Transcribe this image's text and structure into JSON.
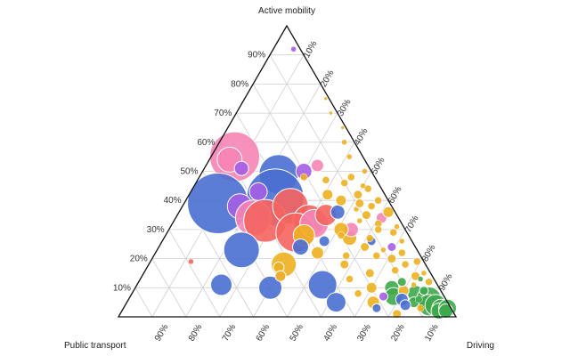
{
  "chart_data": {
    "type": "scatter",
    "subtype": "ternary-bubble",
    "axes": {
      "top": "Active mobility",
      "left": "Public transport",
      "right": "Driving"
    },
    "tick_labels": [
      "10%",
      "20%",
      "30%",
      "40%",
      "50%",
      "60%",
      "70%",
      "80%",
      "90%"
    ],
    "grid": true,
    "colors": {
      "blue": "#4a6fd1",
      "purple": "#a45ee5",
      "pink": "#f585b5",
      "red": "#f5645f",
      "orange": "#eeb021",
      "green": "#3ea84b",
      "grid": "#d0d0d0",
      "frame": "#111111"
    },
    "points": [
      {
        "a": 0.92,
        "p": 0.02,
        "d": 0.06,
        "size": 3,
        "color": "purple"
      },
      {
        "a": 0.55,
        "p": 0.38,
        "d": 0.07,
        "size": 28,
        "color": "pink"
      },
      {
        "a": 0.54,
        "p": 0.4,
        "d": 0.06,
        "size": 14,
        "color": "pink"
      },
      {
        "a": 0.51,
        "p": 0.38,
        "d": 0.11,
        "size": 8,
        "color": "purple"
      },
      {
        "a": 0.49,
        "p": 0.28,
        "d": 0.23,
        "size": 22,
        "color": "blue"
      },
      {
        "a": 0.41,
        "p": 0.33,
        "d": 0.26,
        "size": 32,
        "color": "blue"
      },
      {
        "a": 0.43,
        "p": 0.37,
        "d": 0.2,
        "size": 10,
        "color": "purple"
      },
      {
        "a": 0.5,
        "p": 0.2,
        "d": 0.3,
        "size": 9,
        "color": "purple"
      },
      {
        "a": 0.52,
        "p": 0.15,
        "d": 0.33,
        "size": 7,
        "color": "pink"
      },
      {
        "a": 0.48,
        "p": 0.21,
        "d": 0.31,
        "size": 4,
        "color": "orange"
      },
      {
        "a": 0.39,
        "p": 0.51,
        "d": 0.1,
        "size": 34,
        "color": "blue"
      },
      {
        "a": 0.38,
        "p": 0.45,
        "d": 0.17,
        "size": 14,
        "color": "purple"
      },
      {
        "a": 0.34,
        "p": 0.43,
        "d": 0.23,
        "size": 20,
        "color": "pink"
      },
      {
        "a": 0.33,
        "p": 0.4,
        "d": 0.27,
        "size": 24,
        "color": "red"
      },
      {
        "a": 0.38,
        "p": 0.3,
        "d": 0.32,
        "size": 20,
        "color": "red"
      },
      {
        "a": 0.33,
        "p": 0.27,
        "d": 0.4,
        "size": 18,
        "color": "red"
      },
      {
        "a": 0.29,
        "p": 0.33,
        "d": 0.38,
        "size": 22,
        "color": "red"
      },
      {
        "a": 0.32,
        "p": 0.26,
        "d": 0.42,
        "size": 16,
        "color": "pink"
      },
      {
        "a": 0.28,
        "p": 0.31,
        "d": 0.41,
        "size": 12,
        "color": "orange"
      },
      {
        "a": 0.35,
        "p": 0.21,
        "d": 0.44,
        "size": 12,
        "color": "red"
      },
      {
        "a": 0.27,
        "p": 0.18,
        "d": 0.55,
        "size": 8,
        "color": "orange"
      },
      {
        "a": 0.23,
        "p": 0.52,
        "d": 0.25,
        "size": 20,
        "color": "blue"
      },
      {
        "a": 0.18,
        "p": 0.42,
        "d": 0.4,
        "size": 14,
        "color": "orange"
      },
      {
        "a": 0.24,
        "p": 0.34,
        "d": 0.42,
        "size": 9,
        "color": "blue"
      },
      {
        "a": 0.22,
        "p": 0.3,
        "d": 0.48,
        "size": 7,
        "color": "orange"
      },
      {
        "a": 0.3,
        "p": 0.16,
        "d": 0.54,
        "size": 8,
        "color": "pink"
      },
      {
        "a": 0.19,
        "p": 0.69,
        "d": 0.12,
        "size": 3,
        "color": "red"
      },
      {
        "a": 0.17,
        "p": 0.44,
        "d": 0.39,
        "size": 6,
        "color": "orange"
      },
      {
        "a": 0.14,
        "p": 0.45,
        "d": 0.41,
        "size": 6,
        "color": "pink"
      },
      {
        "a": 0.11,
        "p": 0.64,
        "d": 0.25,
        "size": 12,
        "color": "blue"
      },
      {
        "a": 0.1,
        "p": 0.5,
        "d": 0.4,
        "size": 13,
        "color": "blue"
      },
      {
        "a": 0.14,
        "p": 0.45,
        "d": 0.41,
        "size": 6,
        "color": "orange"
      },
      {
        "a": 0.11,
        "p": 0.34,
        "d": 0.55,
        "size": 16,
        "color": "blue"
      },
      {
        "a": 0.05,
        "p": 0.33,
        "d": 0.62,
        "size": 11,
        "color": "blue"
      },
      {
        "a": 0.26,
        "p": 0.26,
        "d": 0.48,
        "size": 6,
        "color": "blue"
      },
      {
        "a": 0.36,
        "p": 0.17,
        "d": 0.47,
        "size": 8,
        "color": "blue"
      },
      {
        "a": 0.3,
        "p": 0.19,
        "d": 0.51,
        "size": 8,
        "color": "orange"
      },
      {
        "a": 0.4,
        "p": 0.14,
        "d": 0.46,
        "size": 6,
        "color": "orange"
      },
      {
        "a": 0.26,
        "p": 0.12,
        "d": 0.62,
        "size": 5,
        "color": "blue"
      },
      {
        "a": 0.15,
        "p": 0.18,
        "d": 0.67,
        "size": 5,
        "color": "orange"
      },
      {
        "a": 0.1,
        "p": 0.14,
        "d": 0.76,
        "size": 8,
        "color": "green"
      },
      {
        "a": 0.07,
        "p": 0.15,
        "d": 0.78,
        "size": 10,
        "color": "green"
      },
      {
        "a": 0.05,
        "p": 0.22,
        "d": 0.73,
        "size": 7,
        "color": "orange"
      },
      {
        "a": 0.03,
        "p": 0.22,
        "d": 0.75,
        "size": 5,
        "color": "blue"
      },
      {
        "a": 0.08,
        "p": 0.08,
        "d": 0.84,
        "size": 9,
        "color": "green"
      },
      {
        "a": 0.06,
        "p": 0.05,
        "d": 0.89,
        "size": 14,
        "color": "green"
      },
      {
        "a": 0.04,
        "p": 0.06,
        "d": 0.9,
        "size": 12,
        "color": "green"
      },
      {
        "a": 0.04,
        "p": 0.04,
        "d": 0.92,
        "size": 12,
        "color": "green"
      },
      {
        "a": 0.03,
        "p": 0.03,
        "d": 0.94,
        "size": 10,
        "color": "green"
      },
      {
        "a": 0.02,
        "p": 0.04,
        "d": 0.94,
        "size": 9,
        "color": "green"
      },
      {
        "a": 0.03,
        "p": 0.01,
        "d": 0.96,
        "size": 10,
        "color": "green"
      },
      {
        "a": 0.02,
        "p": 0.02,
        "d": 0.96,
        "size": 8,
        "color": "green"
      },
      {
        "a": 0.05,
        "p": 0.1,
        "d": 0.85,
        "size": 6,
        "color": "green"
      },
      {
        "a": 0.09,
        "p": 0.11,
        "d": 0.8,
        "size": 6,
        "color": "orange"
      },
      {
        "a": 0.06,
        "p": 0.13,
        "d": 0.81,
        "size": 7,
        "color": "blue"
      },
      {
        "a": 0.04,
        "p": 0.13,
        "d": 0.83,
        "size": 6,
        "color": "blue"
      },
      {
        "a": 0.01,
        "p": 0.17,
        "d": 0.82,
        "size": 5,
        "color": "orange"
      },
      {
        "a": 0.03,
        "p": 0.09,
        "d": 0.88,
        "size": 4,
        "color": "orange"
      },
      {
        "a": 0.42,
        "p": 0.08,
        "d": 0.5,
        "size": 5,
        "color": "orange"
      },
      {
        "a": 0.38,
        "p": 0.06,
        "d": 0.56,
        "size": 4,
        "color": "orange"
      },
      {
        "a": 0.35,
        "p": 0.09,
        "d": 0.56,
        "size": 5,
        "color": "orange"
      },
      {
        "a": 0.34,
        "p": 0.05,
        "d": 0.61,
        "size": 6,
        "color": "pink"
      },
      {
        "a": 0.32,
        "p": 0.07,
        "d": 0.61,
        "size": 4,
        "color": "orange"
      },
      {
        "a": 0.44,
        "p": 0.04,
        "d": 0.52,
        "size": 4,
        "color": "orange"
      },
      {
        "a": 0.36,
        "p": 0.02,
        "d": 0.62,
        "size": 6,
        "color": "orange"
      },
      {
        "a": 0.3,
        "p": 0.08,
        "d": 0.62,
        "size": 4,
        "color": "orange"
      },
      {
        "a": 0.29,
        "p": 0.04,
        "d": 0.67,
        "size": 4,
        "color": "orange"
      },
      {
        "a": 0.24,
        "p": 0.07,
        "d": 0.69,
        "size": 5,
        "color": "purple"
      },
      {
        "a": 0.22,
        "p": 0.05,
        "d": 0.73,
        "size": 4,
        "color": "orange"
      },
      {
        "a": 0.2,
        "p": 0.09,
        "d": 0.71,
        "size": 5,
        "color": "orange"
      },
      {
        "a": 0.18,
        "p": 0.06,
        "d": 0.76,
        "size": 4,
        "color": "orange"
      },
      {
        "a": 0.16,
        "p": 0.1,
        "d": 0.74,
        "size": 4,
        "color": "orange"
      },
      {
        "a": 0.14,
        "p": 0.05,
        "d": 0.81,
        "size": 5,
        "color": "orange"
      },
      {
        "a": 0.12,
        "p": 0.02,
        "d": 0.86,
        "size": 4,
        "color": "orange"
      },
      {
        "a": 0.27,
        "p": 0.12,
        "d": 0.61,
        "size": 4,
        "color": "orange"
      },
      {
        "a": 0.24,
        "p": 0.15,
        "d": 0.61,
        "size": 5,
        "color": "orange"
      },
      {
        "a": 0.21,
        "p": 0.13,
        "d": 0.66,
        "size": 4,
        "color": "orange"
      },
      {
        "a": 0.19,
        "p": 0.02,
        "d": 0.79,
        "size": 4,
        "color": "orange"
      },
      {
        "a": 0.46,
        "p": 0.1,
        "d": 0.44,
        "size": 4,
        "color": "orange"
      },
      {
        "a": 0.45,
        "p": 0.05,
        "d": 0.5,
        "size": 3,
        "color": "orange"
      },
      {
        "a": 0.4,
        "p": 0.03,
        "d": 0.57,
        "size": 4,
        "color": "orange"
      },
      {
        "a": 0.37,
        "p": 0.11,
        "d": 0.52,
        "size": 3,
        "color": "orange"
      },
      {
        "a": 0.33,
        "p": 0.12,
        "d": 0.55,
        "size": 3,
        "color": "orange"
      },
      {
        "a": 0.31,
        "p": 0.02,
        "d": 0.67,
        "size": 3,
        "color": "orange"
      },
      {
        "a": 0.26,
        "p": 0.03,
        "d": 0.71,
        "size": 3,
        "color": "orange"
      },
      {
        "a": 0.23,
        "p": 0.1,
        "d": 0.67,
        "size": 3,
        "color": "orange"
      },
      {
        "a": 0.15,
        "p": 0.02,
        "d": 0.83,
        "size": 3,
        "color": "orange"
      },
      {
        "a": 0.11,
        "p": 0.07,
        "d": 0.82,
        "size": 3,
        "color": "orange"
      },
      {
        "a": 0.55,
        "p": 0.04,
        "d": 0.41,
        "size": 3,
        "color": "orange"
      },
      {
        "a": 0.6,
        "p": 0.03,
        "d": 0.37,
        "size": 3,
        "color": "orange"
      },
      {
        "a": 0.65,
        "p": 0.01,
        "d": 0.34,
        "size": 2,
        "color": "orange"
      },
      {
        "a": 0.7,
        "p": 0.02,
        "d": 0.28,
        "size": 2,
        "color": "orange"
      },
      {
        "a": 0.75,
        "p": 0.01,
        "d": 0.24,
        "size": 2,
        "color": "orange"
      },
      {
        "a": 0.5,
        "p": 0.02,
        "d": 0.48,
        "size": 3,
        "color": "orange"
      },
      {
        "a": 0.47,
        "p": 0.15,
        "d": 0.38,
        "size": 4,
        "color": "orange"
      },
      {
        "a": 0.48,
        "p": 0.07,
        "d": 0.45,
        "size": 4,
        "color": "orange"
      },
      {
        "a": 0.42,
        "p": 0.17,
        "d": 0.41,
        "size": 6,
        "color": "orange"
      },
      {
        "a": 0.39,
        "p": 0.09,
        "d": 0.52,
        "size": 5,
        "color": "orange"
      },
      {
        "a": 0.28,
        "p": 0.2,
        "d": 0.52,
        "size": 4,
        "color": "orange"
      },
      {
        "a": 0.21,
        "p": 0.22,
        "d": 0.57,
        "size": 4,
        "color": "orange"
      },
      {
        "a": 0.18,
        "p": 0.24,
        "d": 0.58,
        "size": 5,
        "color": "orange"
      },
      {
        "a": 0.13,
        "p": 0.25,
        "d": 0.62,
        "size": 4,
        "color": "orange"
      },
      {
        "a": 0.1,
        "p": 0.2,
        "d": 0.7,
        "size": 6,
        "color": "orange"
      },
      {
        "a": 0.08,
        "p": 0.25,
        "d": 0.67,
        "size": 4,
        "color": "orange"
      },
      {
        "a": 0.07,
        "p": 0.18,
        "d": 0.75,
        "size": 5,
        "color": "purple"
      },
      {
        "a": 0.12,
        "p": 0.1,
        "d": 0.78,
        "size": 5,
        "color": "green"
      },
      {
        "a": 0.09,
        "p": 0.05,
        "d": 0.86,
        "size": 5,
        "color": "green"
      },
      {
        "a": 0.06,
        "p": 0.08,
        "d": 0.86,
        "size": 4,
        "color": "green"
      },
      {
        "a": 0.13,
        "p": 0.04,
        "d": 0.83,
        "size": 3,
        "color": "green"
      }
    ]
  }
}
